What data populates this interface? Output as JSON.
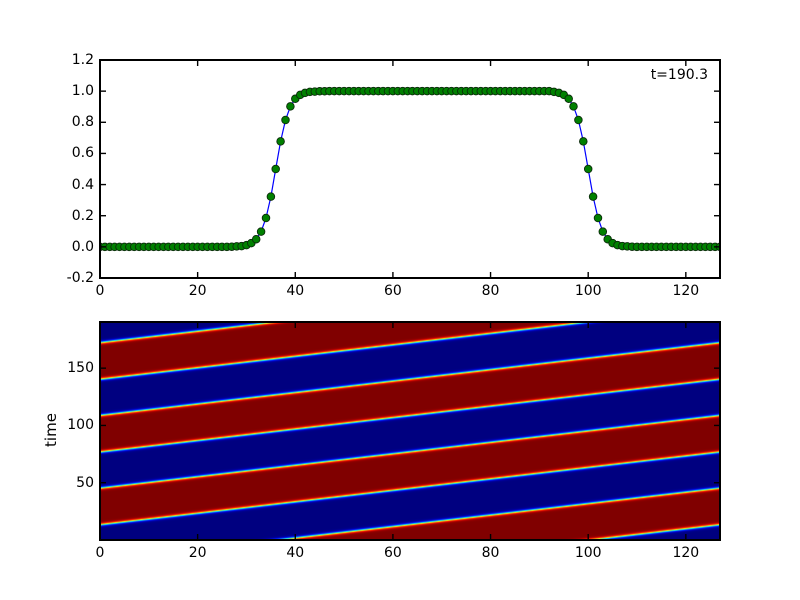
{
  "figure": {
    "background": "#ffffff",
    "frame_color": "#000000",
    "text_color": "#000000"
  },
  "chart_data": [
    {
      "id": "pulse-profile",
      "type": "line",
      "annotation": "t=190.3",
      "x_start": 0,
      "x_step": 1,
      "n_points": 128,
      "xlim": [
        0,
        127
      ],
      "ylim": [
        -0.2,
        1.2
      ],
      "xticks": [
        0,
        20,
        40,
        60,
        80,
        100,
        120
      ],
      "xtick_labels": [
        "0",
        "20",
        "40",
        "60",
        "80",
        "100",
        "120"
      ],
      "yticks": [
        -0.2,
        0.0,
        0.2,
        0.4,
        0.6,
        0.8,
        1.0,
        1.2
      ],
      "ytick_labels": [
        "-0.2",
        "0.0",
        "0.2",
        "0.4",
        "0.6",
        "0.8",
        "1.0",
        "1.2"
      ],
      "line_color": "#0000ff",
      "marker": "circle",
      "marker_color": "#008000",
      "marker_edge_color": "#0a2a0a",
      "grid": false,
      "values": [
        0,
        0,
        0,
        0,
        0,
        0,
        0,
        0,
        0,
        0,
        0,
        0,
        0,
        0,
        0,
        0,
        0,
        0,
        0,
        0,
        0,
        0,
        0,
        0,
        0,
        0,
        0,
        0.001,
        0.003,
        0.005,
        0.011,
        0.024,
        0.049,
        0.098,
        0.185,
        0.323,
        0.5,
        0.677,
        0.815,
        0.902,
        0.951,
        0.976,
        0.989,
        0.995,
        0.997,
        0.999,
        0.999,
        1,
        1,
        1,
        1,
        1,
        1,
        1,
        1,
        1,
        1,
        1,
        1,
        1,
        1,
        1,
        1,
        1,
        1,
        1,
        1,
        1,
        1,
        1,
        1,
        1,
        1,
        1,
        1,
        1,
        1,
        1,
        1,
        1,
        1,
        1,
        1,
        1,
        1,
        1,
        1,
        1,
        1,
        1,
        1,
        1,
        1,
        0.995,
        0.989,
        0.976,
        0.951,
        0.902,
        0.815,
        0.677,
        0.5,
        0.323,
        0.185,
        0.098,
        0.049,
        0.024,
        0.011,
        0.005,
        0.003,
        0.001,
        0,
        0,
        0,
        0,
        0,
        0,
        0,
        0,
        0,
        0,
        0,
        0,
        0,
        0,
        0,
        0,
        0,
        0
      ]
    },
    {
      "id": "spacetime-diagram",
      "type": "heatmap",
      "ylabel": "time",
      "xlim": [
        0,
        127
      ],
      "tlim": [
        0,
        190.3
      ],
      "xticks": [
        0,
        20,
        40,
        60,
        80,
        100,
        120
      ],
      "xtick_labels": [
        "0",
        "20",
        "40",
        "60",
        "80",
        "100",
        "120"
      ],
      "yticks": [
        50,
        100,
        150
      ],
      "ytick_labels": [
        "50",
        "100",
        "150"
      ],
      "colormap": "jet",
      "low_color": "#000080",
      "high_color": "#800000",
      "wave": {
        "description": "periodic traveling pulse u(x,t)",
        "speed": 2.0,
        "wrap_period": 127,
        "rising_edge_at_tref": 36,
        "falling_edge_at_tref": 100,
        "edge_width": 2.7,
        "t_ref": 190.3
      }
    }
  ]
}
